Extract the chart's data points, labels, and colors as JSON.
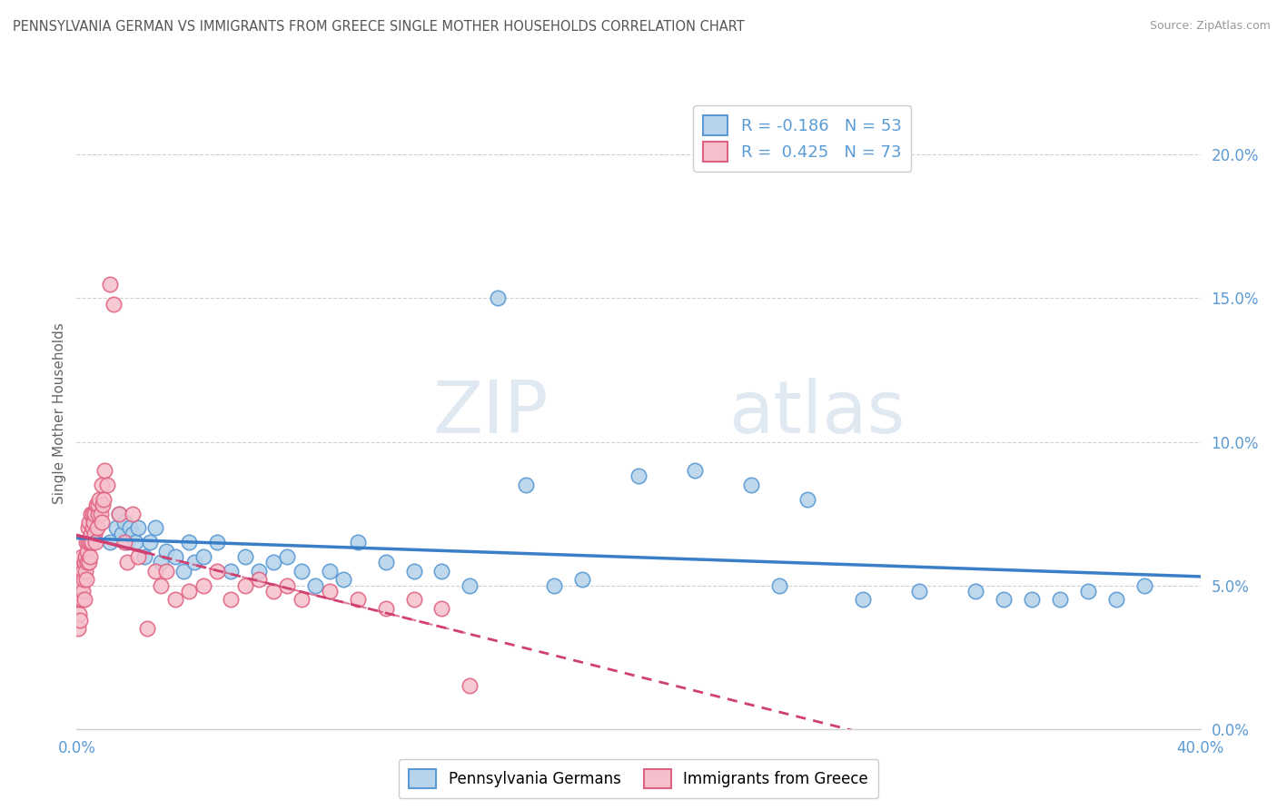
{
  "title": "PENNSYLVANIA GERMAN VS IMMIGRANTS FROM GREECE SINGLE MOTHER HOUSEHOLDS CORRELATION CHART",
  "source": "Source: ZipAtlas.com",
  "ylabel": "Single Mother Households",
  "ytick_labels": [
    "0.0%",
    "5.0%",
    "10.0%",
    "15.0%",
    "20.0%"
  ],
  "ytick_vals": [
    0.0,
    5.0,
    10.0,
    15.0,
    20.0
  ],
  "xlim": [
    0.0,
    40.0
  ],
  "ylim": [
    0.0,
    22.0
  ],
  "R_blue": -0.186,
  "N_blue": 53,
  "R_pink": 0.425,
  "N_pink": 73,
  "legend_label_blue": "Pennsylvania Germans",
  "legend_label_pink": "Immigrants from Greece",
  "blue_face_color": "#b8d4ea",
  "blue_edge_color": "#5b9bd5",
  "pink_face_color": "#f5c0cc",
  "pink_edge_color": "#e06080",
  "blue_line_color": "#3a7ec8",
  "pink_line_color": "#d04070",
  "watermark_color": "#d0dce8",
  "background_color": "#ffffff",
  "grid_color": "#d0d0d0",
  "blue_scatter_x": [
    1.2,
    1.4,
    1.5,
    1.6,
    1.7,
    1.8,
    1.9,
    2.0,
    2.1,
    2.2,
    2.4,
    2.6,
    2.8,
    3.0,
    3.2,
    3.5,
    3.8,
    4.0,
    4.2,
    4.5,
    5.0,
    5.5,
    6.0,
    6.5,
    7.0,
    7.5,
    8.0,
    8.5,
    9.0,
    9.5,
    10.0,
    11.0,
    12.0,
    13.0,
    14.0,
    15.0,
    16.0,
    17.0,
    18.0,
    20.0,
    22.0,
    24.0,
    25.0,
    26.0,
    28.0,
    30.0,
    32.0,
    33.0,
    34.0,
    35.0,
    36.0,
    37.0,
    38.0
  ],
  "blue_scatter_y": [
    6.5,
    7.0,
    7.5,
    6.8,
    7.2,
    6.5,
    7.0,
    6.8,
    6.5,
    7.0,
    6.0,
    6.5,
    7.0,
    5.8,
    6.2,
    6.0,
    5.5,
    6.5,
    5.8,
    6.0,
    6.5,
    5.5,
    6.0,
    5.5,
    5.8,
    6.0,
    5.5,
    5.0,
    5.5,
    5.2,
    6.5,
    5.8,
    5.5,
    5.5,
    5.0,
    15.0,
    8.5,
    5.0,
    5.2,
    8.8,
    9.0,
    8.5,
    5.0,
    8.0,
    4.5,
    4.8,
    4.8,
    4.5,
    4.5,
    4.5,
    4.8,
    4.5,
    5.0
  ],
  "pink_scatter_x": [
    0.05,
    0.08,
    0.1,
    0.12,
    0.13,
    0.15,
    0.17,
    0.18,
    0.2,
    0.22,
    0.25,
    0.27,
    0.28,
    0.3,
    0.32,
    0.33,
    0.35,
    0.37,
    0.38,
    0.4,
    0.42,
    0.43,
    0.45,
    0.47,
    0.48,
    0.5,
    0.52,
    0.55,
    0.57,
    0.58,
    0.6,
    0.62,
    0.65,
    0.68,
    0.7,
    0.72,
    0.75,
    0.77,
    0.8,
    0.85,
    0.88,
    0.9,
    0.92,
    0.95,
    1.0,
    1.1,
    1.2,
    1.3,
    1.5,
    1.7,
    1.8,
    2.0,
    2.2,
    2.5,
    2.8,
    3.0,
    3.2,
    3.5,
    4.0,
    4.5,
    5.0,
    5.5,
    6.0,
    6.5,
    7.0,
    7.5,
    8.0,
    9.0,
    10.0,
    11.0,
    12.0,
    13.0,
    14.0
  ],
  "pink_scatter_y": [
    3.5,
    4.0,
    5.5,
    4.5,
    3.8,
    5.0,
    4.5,
    6.0,
    5.5,
    4.8,
    5.2,
    5.8,
    4.5,
    6.0,
    5.5,
    5.2,
    6.5,
    5.8,
    6.2,
    7.0,
    6.5,
    5.8,
    7.2,
    6.0,
    6.5,
    6.8,
    7.5,
    6.5,
    7.0,
    7.5,
    7.2,
    6.8,
    7.5,
    6.5,
    7.8,
    7.0,
    7.5,
    7.8,
    8.0,
    7.5,
    7.2,
    8.5,
    7.8,
    8.0,
    9.0,
    8.5,
    15.5,
    14.8,
    7.5,
    6.5,
    5.8,
    7.5,
    6.0,
    3.5,
    5.5,
    5.0,
    5.5,
    4.5,
    4.8,
    5.0,
    5.5,
    4.5,
    5.0,
    5.2,
    4.8,
    5.0,
    4.5,
    4.8,
    4.5,
    4.2,
    4.5,
    4.2,
    1.5
  ]
}
